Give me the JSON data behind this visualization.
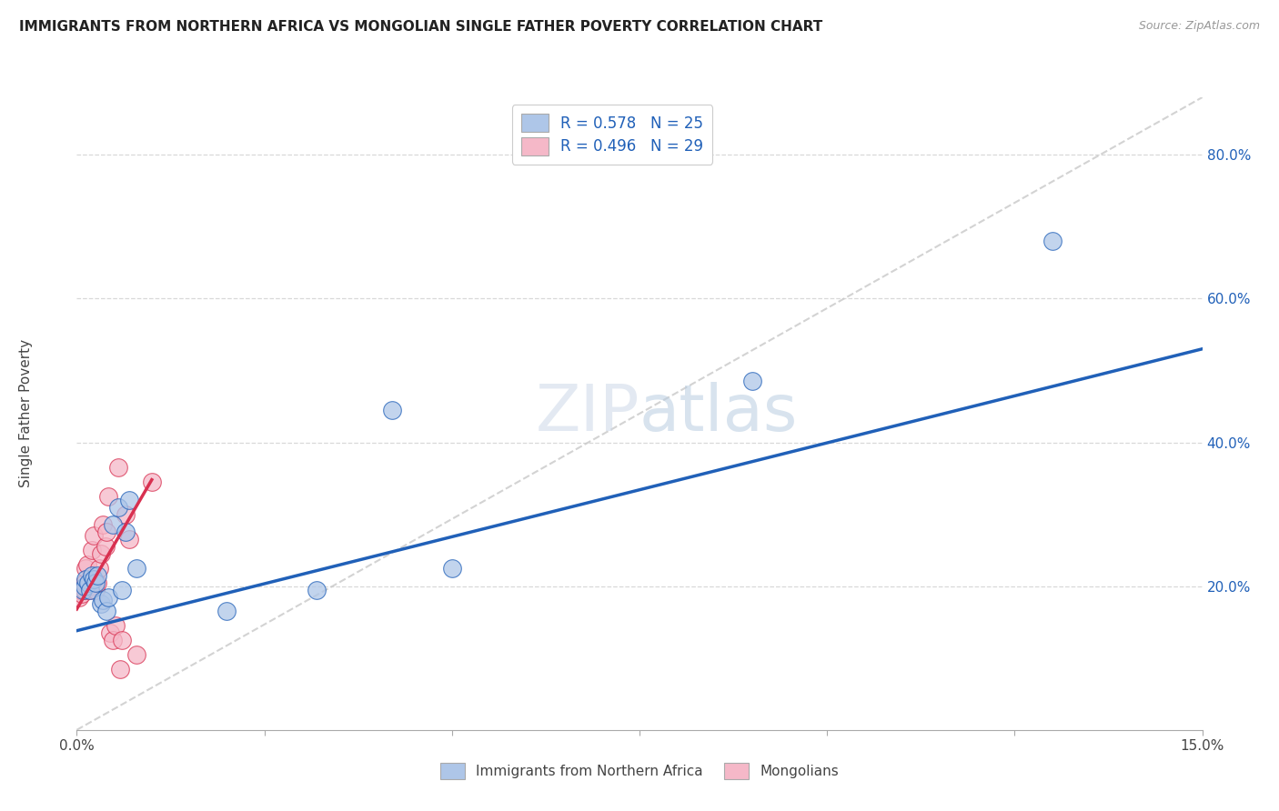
{
  "title": "IMMIGRANTS FROM NORTHERN AFRICA VS MONGOLIAN SINGLE FATHER POVERTY CORRELATION CHART",
  "source": "Source: ZipAtlas.com",
  "ylabel": "Single Father Poverty",
  "y_ticks_right": [
    0.2,
    0.4,
    0.6,
    0.8
  ],
  "xlim": [
    0.0,
    0.15
  ],
  "ylim": [
    0.0,
    0.88
  ],
  "legend1_label": "R = 0.578   N = 25",
  "legend2_label": "R = 0.496   N = 29",
  "legend_bottom1": "Immigrants from Northern Africa",
  "legend_bottom2": "Mongolians",
  "series1_color": "#aec6e8",
  "series2_color": "#f5b8c8",
  "line1_color": "#2060b8",
  "line2_color": "#d83050",
  "ref_line_color": "#c8c8c8",
  "grid_color": "#d8d8d8",
  "series1_x": [
    0.0008,
    0.001,
    0.0012,
    0.0015,
    0.0018,
    0.002,
    0.0022,
    0.0025,
    0.0028,
    0.0032,
    0.0035,
    0.004,
    0.0042,
    0.0048,
    0.0055,
    0.006,
    0.0065,
    0.007,
    0.008,
    0.02,
    0.032,
    0.042,
    0.05,
    0.09,
    0.13
  ],
  "series1_y": [
    0.195,
    0.2,
    0.21,
    0.205,
    0.195,
    0.215,
    0.21,
    0.205,
    0.215,
    0.175,
    0.18,
    0.165,
    0.185,
    0.285,
    0.31,
    0.195,
    0.275,
    0.32,
    0.225,
    0.165,
    0.195,
    0.445,
    0.225,
    0.485,
    0.68
  ],
  "series2_x": [
    0.0003,
    0.0005,
    0.0007,
    0.001,
    0.001,
    0.0012,
    0.0014,
    0.0016,
    0.0018,
    0.002,
    0.0022,
    0.0025,
    0.0028,
    0.003,
    0.0032,
    0.0035,
    0.0038,
    0.004,
    0.0042,
    0.0045,
    0.0048,
    0.0052,
    0.0055,
    0.0058,
    0.006,
    0.0065,
    0.007,
    0.008,
    0.01
  ],
  "series2_y": [
    0.185,
    0.195,
    0.19,
    0.195,
    0.205,
    0.225,
    0.23,
    0.195,
    0.2,
    0.25,
    0.27,
    0.195,
    0.205,
    0.225,
    0.245,
    0.285,
    0.255,
    0.275,
    0.325,
    0.135,
    0.125,
    0.145,
    0.365,
    0.085,
    0.125,
    0.3,
    0.265,
    0.105,
    0.345
  ],
  "line1_x": [
    0.0,
    0.15
  ],
  "line1_y": [
    0.138,
    0.53
  ],
  "line2_x": [
    0.0,
    0.01
  ],
  "line2_y": [
    0.168,
    0.348
  ],
  "ref_line_x": [
    0.0,
    0.15
  ],
  "ref_line_y": [
    0.0,
    0.88
  ],
  "x_ticks": [
    0.0,
    0.025,
    0.05,
    0.075,
    0.1,
    0.125,
    0.15
  ],
  "watermark_zip": "ZIP",
  "watermark_atlas": "atlas"
}
